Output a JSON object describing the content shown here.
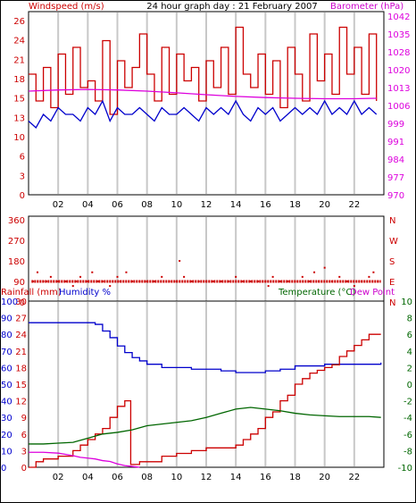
{
  "title": "24 hour graph day : 21 February 2007",
  "colors": {
    "red": "#cc0000",
    "blue": "#0000cc",
    "magenta": "#dd00dd",
    "green": "#006600",
    "grid": "#c8c8c8",
    "frame": "#000000"
  },
  "x_ticks": [
    "02",
    "04",
    "06",
    "08",
    "10",
    "12",
    "14",
    "16",
    "18",
    "20",
    "22"
  ],
  "chart_data": [
    {
      "type": "line",
      "title": "24 hour graph day : 21 February 2007",
      "xlabel": "",
      "x_range_hours": [
        0,
        24
      ],
      "left_axis": {
        "label": "Windspeed (m/s)",
        "ticks": [
          "0",
          "3",
          "6",
          "10",
          "13",
          "15",
          "18",
          "21",
          "24",
          "26"
        ],
        "range": [
          0,
          26
        ]
      },
      "right_axis": {
        "label": "Barometer (hPa)",
        "ticks": [
          "970",
          "977",
          "984",
          "991",
          "999",
          "1006",
          "1013",
          "1020",
          "1028",
          "1035",
          "1042"
        ],
        "range": [
          970,
          1045
        ]
      },
      "series": [
        {
          "name": "Windspeed gust",
          "color": "red",
          "x": [
            0,
            0.5,
            1,
            1.5,
            2,
            2.5,
            3,
            3.5,
            4,
            4.5,
            5,
            5.5,
            6,
            6.5,
            7,
            7.5,
            8,
            8.5,
            9,
            9.5,
            10,
            10.5,
            11,
            11.5,
            12,
            12.5,
            13,
            13.5,
            14,
            14.5,
            15,
            15.5,
            16,
            16.5,
            17,
            17.5,
            18,
            18.5,
            19,
            19.5,
            20,
            20.5,
            21,
            21.5,
            22,
            22.5,
            23,
            23.5
          ],
          "values": [
            18,
            14,
            19,
            13,
            21,
            15,
            22,
            16,
            17,
            14,
            23,
            12,
            20,
            16,
            19,
            24,
            18,
            14,
            22,
            15,
            21,
            17,
            19,
            14,
            20,
            16,
            22,
            15,
            25,
            18,
            16,
            21,
            15,
            20,
            13,
            22,
            18,
            14,
            24,
            17,
            21,
            15,
            25,
            18,
            22,
            15,
            24,
            14
          ]
        },
        {
          "name": "Windspeed average",
          "color": "blue",
          "x": [
            0,
            0.5,
            1,
            1.5,
            2,
            2.5,
            3,
            3.5,
            4,
            4.5,
            5,
            5.5,
            6,
            6.5,
            7,
            7.5,
            8,
            8.5,
            9,
            9.5,
            10,
            10.5,
            11,
            11.5,
            12,
            12.5,
            13,
            13.5,
            14,
            14.5,
            15,
            15.5,
            16,
            16.5,
            17,
            17.5,
            18,
            18.5,
            19,
            19.5,
            20,
            20.5,
            21,
            21.5,
            22,
            22.5,
            23,
            23.5
          ],
          "values": [
            11,
            10,
            12,
            11,
            13,
            12,
            12,
            11,
            13,
            12,
            14,
            11,
            13,
            12,
            12,
            13,
            12,
            11,
            13,
            12,
            12,
            13,
            12,
            11,
            13,
            12,
            13,
            12,
            14,
            12,
            11,
            13,
            12,
            13,
            11,
            12,
            13,
            12,
            13,
            12,
            14,
            12,
            13,
            12,
            14,
            12,
            13,
            12
          ]
        },
        {
          "name": "Barometer",
          "color": "magenta",
          "axis": "right",
          "x": [
            0,
            2,
            4,
            6,
            8,
            10,
            12,
            14,
            16,
            18,
            20,
            22,
            23.5
          ],
          "values": [
            1013.5,
            1014,
            1014.2,
            1014,
            1013.5,
            1012.8,
            1012,
            1011.3,
            1010.8,
            1010.5,
            1010.3,
            1010.3,
            1010.5
          ]
        }
      ]
    },
    {
      "type": "scatter",
      "xlabel": "",
      "x_range_hours": [
        0,
        24
      ],
      "left_axis": {
        "label": "",
        "ticks": [
          "0",
          "90",
          "180",
          "270",
          "360"
        ],
        "range": [
          0,
          360
        ]
      },
      "right_axis": {
        "label": "",
        "ticks": [
          "N",
          "E",
          "S",
          "W",
          "N"
        ]
      },
      "series": [
        {
          "name": "Wind direction",
          "color": "red",
          "x": [
            0.3,
            0.6,
            1.0,
            1.2,
            1.5,
            2.0,
            2.5,
            3.0,
            3.2,
            3.5,
            4.0,
            4.3,
            4.7,
            5.0,
            5.5,
            6.0,
            6.2,
            6.6,
            7.0,
            7.5,
            8.0,
            8.5,
            9.0,
            9.5,
            10.0,
            10.2,
            10.5,
            11.0,
            11.5,
            12.0,
            12.5,
            13.0,
            13.5,
            14.0,
            14.5,
            15.0,
            15.5,
            16.0,
            16.2,
            16.5,
            17.0,
            17.5,
            18.0,
            18.5,
            19.0,
            19.3,
            19.6,
            20.0,
            20.5,
            21.0,
            21.5,
            22.0,
            22.5,
            23.0,
            23.3,
            23.6
          ],
          "values": [
            90,
            130,
            90,
            90,
            110,
            90,
            90,
            70,
            90,
            110,
            90,
            130,
            90,
            90,
            70,
            110,
            90,
            130,
            90,
            90,
            90,
            90,
            110,
            90,
            90,
            180,
            110,
            90,
            90,
            90,
            90,
            90,
            90,
            110,
            90,
            90,
            90,
            90,
            70,
            110,
            90,
            90,
            90,
            110,
            90,
            130,
            90,
            150,
            90,
            110,
            90,
            70,
            90,
            110,
            130,
            90
          ]
        }
      ]
    },
    {
      "type": "line",
      "xlabel": "",
      "x_range_hours": [
        0,
        24
      ],
      "axes": {
        "rainfall": {
          "label": "Rainfall (mm)",
          "ticks": [
            "0",
            "3",
            "6",
            "9",
            "12",
            "15",
            "18",
            "21",
            "24",
            "27",
            "30"
          ],
          "range": [
            0,
            30
          ]
        },
        "humidity": {
          "label": "Humidity %",
          "ticks": [
            "0",
            "10",
            "20",
            "30",
            "40",
            "50",
            "60",
            "70",
            "80",
            "90",
            "100"
          ],
          "range": [
            0,
            100
          ]
        },
        "temperature": {
          "label": "Temperature (°C)",
          "ticks": [
            "-10",
            "-8",
            "-6",
            "-4",
            "-2",
            "0",
            "2",
            "4",
            "6",
            "8",
            "10"
          ],
          "range": [
            -10,
            10
          ]
        },
        "dewpoint_label": "Dew Point"
      },
      "series": [
        {
          "name": "Humidity",
          "axis": "humidity",
          "color": "blue",
          "x": [
            0,
            1,
            2,
            3,
            4,
            4.5,
            5,
            5.5,
            6,
            6.5,
            7,
            7.5,
            8,
            9,
            10,
            11,
            12,
            13,
            14,
            15,
            16,
            17,
            18,
            19,
            20,
            21,
            22,
            23,
            23.8
          ],
          "values": [
            87,
            87,
            87,
            87,
            87,
            86,
            82,
            78,
            73,
            69,
            66,
            64,
            62,
            60,
            60,
            59,
            59,
            58,
            57,
            57,
            58,
            59,
            61,
            61,
            62,
            62,
            62,
            62,
            63
          ]
        },
        {
          "name": "Rainfall",
          "axis": "rainfall",
          "color": "red",
          "x": [
            0,
            0.5,
            1,
            2,
            3,
            3.5,
            4,
            4.5,
            5,
            5.5,
            6,
            6.5,
            6.8,
            6.9,
            7,
            7.5,
            8,
            9,
            10,
            11,
            12,
            13,
            14,
            14.5,
            15,
            15.5,
            16,
            16.5,
            17,
            17.5,
            18,
            18.5,
            19,
            19.5,
            20,
            20.5,
            21,
            21.5,
            22,
            22.5,
            23,
            23.8
          ],
          "values": [
            0,
            1,
            1.5,
            2,
            3,
            4,
            5,
            6,
            7,
            9,
            11,
            12,
            12,
            0.5,
            0.5,
            1,
            1,
            2,
            2.5,
            3,
            3.5,
            3.5,
            4,
            5,
            6,
            7,
            9,
            10,
            12,
            13,
            15,
            16,
            17,
            17.5,
            18,
            18.5,
            20,
            21,
            22,
            23,
            24,
            24
          ]
        },
        {
          "name": "Temperature",
          "axis": "temperature",
          "color": "green",
          "x": [
            0,
            1,
            2,
            3,
            4,
            5,
            6,
            7,
            8,
            9,
            10,
            11,
            12,
            13,
            14,
            15,
            16,
            17,
            18,
            19,
            20,
            21,
            22,
            23,
            23.8
          ],
          "values": [
            -7.2,
            -7.2,
            -7.1,
            -7.0,
            -6.5,
            -6.0,
            -5.8,
            -5.5,
            -5.0,
            -4.8,
            -4.6,
            -4.4,
            -4.0,
            -3.5,
            -3.0,
            -2.8,
            -3.0,
            -3.2,
            -3.5,
            -3.7,
            -3.8,
            -3.9,
            -3.9,
            -3.9,
            -4.0
          ]
        },
        {
          "name": "Dew Point",
          "axis": "temperature",
          "color": "magenta",
          "x": [
            0,
            1,
            2,
            3,
            3.5,
            4,
            4.5,
            5,
            5.5,
            6,
            6.5,
            7,
            7.5
          ],
          "values": [
            -8.2,
            -8.2,
            -8.3,
            -8.6,
            -8.8,
            -8.9,
            -9.0,
            -9.2,
            -9.3,
            -9.6,
            -9.8,
            -9.9,
            -10
          ]
        }
      ]
    }
  ]
}
